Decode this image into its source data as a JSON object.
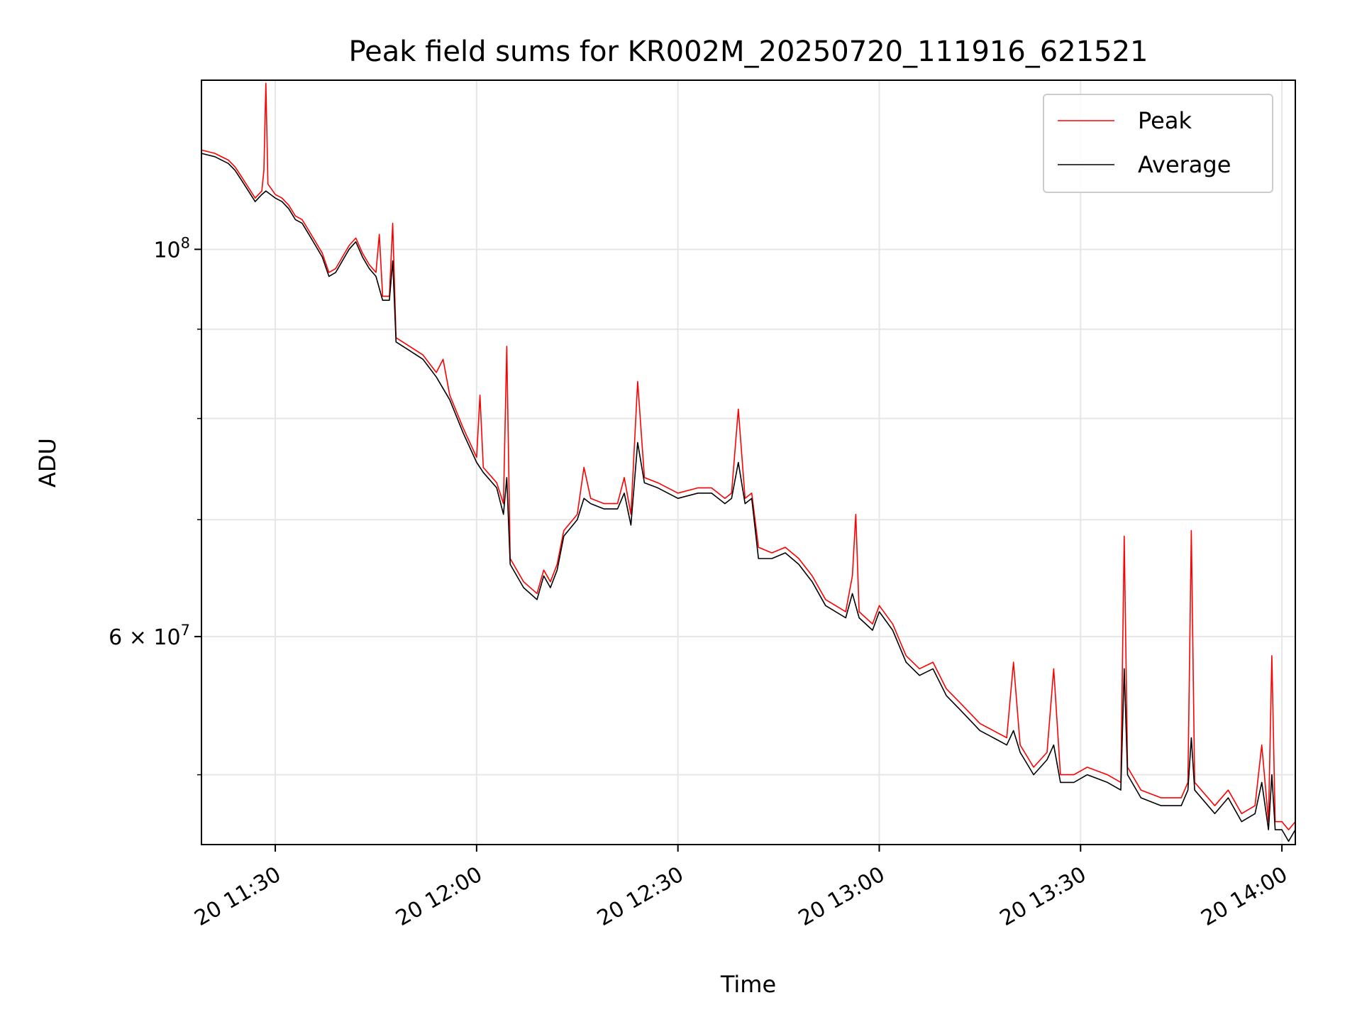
{
  "chart_data": {
    "type": "line",
    "title": "Peak field sums for KR002M_20250720_111916_621521",
    "xlabel": "Time",
    "ylabel": "ADU",
    "yscale": "log",
    "xlim": [
      "2025-07-20 11:19",
      "2025-07-20 14:02"
    ],
    "ylim": [
      45600000,
      125000000
    ],
    "grid": true,
    "legend_position": "top-right",
    "x_ticks": [
      {
        "value": "2025-07-20 11:30",
        "label": "20 11:30"
      },
      {
        "value": "2025-07-20 12:00",
        "label": "20 12:00"
      },
      {
        "value": "2025-07-20 12:30",
        "label": "20 12:30"
      },
      {
        "value": "2025-07-20 13:00",
        "label": "20 13:00"
      },
      {
        "value": "2025-07-20 13:30",
        "label": "20 13:30"
      },
      {
        "value": "2025-07-20 14:00",
        "label": "20 14:00"
      }
    ],
    "y_major_ticks": [
      {
        "value": 100000000,
        "base": "10",
        "exp": "8"
      },
      {
        "value": 60000000,
        "base": "6 × 10",
        "exp": "7"
      }
    ],
    "y_minor_ticks": [
      50000000,
      70000000,
      80000000,
      90000000
    ],
    "series": [
      {
        "name": "Peak",
        "color": "#ff0000",
        "points": [
          [
            "2025-07-20 11:19",
            114.0
          ],
          [
            "2025-07-20 11:21",
            113.5
          ],
          [
            "2025-07-20 11:23",
            112.5
          ],
          [
            "2025-07-20 11:24",
            111.5
          ],
          [
            "2025-07-20 11:25",
            110.0
          ],
          [
            "2025-07-20 11:26",
            108.5
          ],
          [
            "2025-07-20 11:27",
            107.0
          ],
          [
            "2025-07-20 11:28",
            108.0
          ],
          [
            "2025-07-20 11:28.3",
            111.0
          ],
          [
            "2025-07-20 11:28.6",
            124.5
          ],
          [
            "2025-07-20 11:28.9",
            109.0
          ],
          [
            "2025-07-20 11:30",
            107.5
          ],
          [
            "2025-07-20 11:31",
            107.0
          ],
          [
            "2025-07-20 11:32",
            106.0
          ],
          [
            "2025-07-20 11:33",
            104.5
          ],
          [
            "2025-07-20 11:34",
            104.0
          ],
          [
            "2025-07-20 11:35",
            102.5
          ],
          [
            "2025-07-20 11:36",
            101.0
          ],
          [
            "2025-07-20 11:37",
            99.5
          ],
          [
            "2025-07-20 11:38",
            97.0
          ],
          [
            "2025-07-20 11:39",
            97.5
          ],
          [
            "2025-07-20 11:40",
            99.0
          ],
          [
            "2025-07-20 11:41",
            100.5
          ],
          [
            "2025-07-20 11:42",
            101.5
          ],
          [
            "2025-07-20 11:43",
            99.5
          ],
          [
            "2025-07-20 11:44",
            98.0
          ],
          [
            "2025-07-20 11:45",
            97.0
          ],
          [
            "2025-07-20 11:45.5",
            102.0
          ],
          [
            "2025-07-20 11:46",
            94.0
          ],
          [
            "2025-07-20 11:47",
            94.0
          ],
          [
            "2025-07-20 11:47.5",
            103.5
          ],
          [
            "2025-07-20 11:48",
            89.0
          ],
          [
            "2025-07-20 11:50",
            88.0
          ],
          [
            "2025-07-20 11:52",
            87.0
          ],
          [
            "2025-07-20 11:54",
            85.0
          ],
          [
            "2025-07-20 11:55",
            86.5
          ],
          [
            "2025-07-20 11:56",
            82.5
          ],
          [
            "2025-07-20 11:58",
            79.0
          ],
          [
            "2025-07-20 12:00",
            76.0
          ],
          [
            "2025-07-20 12:00.5",
            82.5
          ],
          [
            "2025-07-20 12:01",
            75.0
          ],
          [
            "2025-07-20 12:03",
            73.5
          ],
          [
            "2025-07-20 12:04",
            71.5
          ],
          [
            "2025-07-20 12:04.5",
            88.0
          ],
          [
            "2025-07-20 12:05",
            66.5
          ],
          [
            "2025-07-20 12:07",
            64.5
          ],
          [
            "2025-07-20 12:09",
            63.5
          ],
          [
            "2025-07-20 12:10",
            65.5
          ],
          [
            "2025-07-20 12:11",
            64.5
          ],
          [
            "2025-07-20 12:12",
            66.0
          ],
          [
            "2025-07-20 12:13",
            69.0
          ],
          [
            "2025-07-20 12:15",
            70.5
          ],
          [
            "2025-07-20 12:16",
            75.0
          ],
          [
            "2025-07-20 12:17",
            72.0
          ],
          [
            "2025-07-20 12:19",
            71.5
          ],
          [
            "2025-07-20 12:21",
            71.5
          ],
          [
            "2025-07-20 12:22",
            74.0
          ],
          [
            "2025-07-20 12:23",
            70.5
          ],
          [
            "2025-07-20 12:24",
            84.0
          ],
          [
            "2025-07-20 12:25",
            74.0
          ],
          [
            "2025-07-20 12:27",
            73.5
          ],
          [
            "2025-07-20 12:30",
            72.5
          ],
          [
            "2025-07-20 12:33",
            73.0
          ],
          [
            "2025-07-20 12:35",
            73.0
          ],
          [
            "2025-07-20 12:37",
            72.0
          ],
          [
            "2025-07-20 12:38",
            72.5
          ],
          [
            "2025-07-20 12:39",
            81.0
          ],
          [
            "2025-07-20 12:40",
            72.0
          ],
          [
            "2025-07-20 12:41",
            72.5
          ],
          [
            "2025-07-20 12:42",
            67.5
          ],
          [
            "2025-07-20 12:44",
            67.0
          ],
          [
            "2025-07-20 12:46",
            67.5
          ],
          [
            "2025-07-20 12:48",
            66.5
          ],
          [
            "2025-07-20 12:50",
            65.0
          ],
          [
            "2025-07-20 12:52",
            63.0
          ],
          [
            "2025-07-20 12:55",
            62.0
          ],
          [
            "2025-07-20 12:56",
            65.0
          ],
          [
            "2025-07-20 12:56.5",
            70.5
          ],
          [
            "2025-07-20 12:57",
            62.0
          ],
          [
            "2025-07-20 12:59",
            61.0
          ],
          [
            "2025-07-20 13:00",
            62.5
          ],
          [
            "2025-07-20 13:02",
            61.0
          ],
          [
            "2025-07-20 13:04",
            58.5
          ],
          [
            "2025-07-20 13:06",
            57.5
          ],
          [
            "2025-07-20 13:08",
            58.0
          ],
          [
            "2025-07-20 13:10",
            56.0
          ],
          [
            "2025-07-20 13:12",
            55.0
          ],
          [
            "2025-07-20 13:15",
            53.5
          ],
          [
            "2025-07-20 13:17",
            53.0
          ],
          [
            "2025-07-20 13:19",
            52.5
          ],
          [
            "2025-07-20 13:20",
            58.0
          ],
          [
            "2025-07-20 13:21",
            52.0
          ],
          [
            "2025-07-20 13:23",
            50.5
          ],
          [
            "2025-07-20 13:25",
            51.5
          ],
          [
            "2025-07-20 13:26",
            57.5
          ],
          [
            "2025-07-20 13:27",
            50.0
          ],
          [
            "2025-07-20 13:29",
            50.0
          ],
          [
            "2025-07-20 13:31",
            50.5
          ],
          [
            "2025-07-20 13:34",
            50.0
          ],
          [
            "2025-07-20 13:36",
            49.5
          ],
          [
            "2025-07-20 13:36.5",
            68.5
          ],
          [
            "2025-07-20 13:37",
            50.5
          ],
          [
            "2025-07-20 13:39",
            49.0
          ],
          [
            "2025-07-20 13:42",
            48.5
          ],
          [
            "2025-07-20 13:45",
            48.5
          ],
          [
            "2025-07-20 13:46",
            49.5
          ],
          [
            "2025-07-20 13:46.5",
            69.0
          ],
          [
            "2025-07-20 13:47",
            49.5
          ],
          [
            "2025-07-20 13:50",
            48.0
          ],
          [
            "2025-07-20 13:52",
            49.0
          ],
          [
            "2025-07-20 13:54",
            47.5
          ],
          [
            "2025-07-20 13:56",
            48.0
          ],
          [
            "2025-07-20 13:57",
            52.0
          ],
          [
            "2025-07-20 13:58",
            47.0
          ],
          [
            "2025-07-20 13:58.5",
            58.5
          ],
          [
            "2025-07-20 13:59",
            47.0
          ],
          [
            "2025-07-20 14:00",
            47.0
          ],
          [
            "2025-07-20 14:01",
            46.5
          ],
          [
            "2025-07-20 14:02",
            47.0
          ]
        ]
      },
      {
        "name": "Average",
        "color": "#000000",
        "points": [
          [
            "2025-07-20 11:19",
            113.5
          ],
          [
            "2025-07-20 11:21",
            113.0
          ],
          [
            "2025-07-20 11:23",
            112.0
          ],
          [
            "2025-07-20 11:24",
            111.0
          ],
          [
            "2025-07-20 11:25",
            109.5
          ],
          [
            "2025-07-20 11:26",
            108.0
          ],
          [
            "2025-07-20 11:27",
            106.5
          ],
          [
            "2025-07-20 11:28",
            107.5
          ],
          [
            "2025-07-20 11:28.6",
            108.0
          ],
          [
            "2025-07-20 11:30",
            107.0
          ],
          [
            "2025-07-20 11:31",
            106.5
          ],
          [
            "2025-07-20 11:32",
            105.5
          ],
          [
            "2025-07-20 11:33",
            104.0
          ],
          [
            "2025-07-20 11:34",
            103.5
          ],
          [
            "2025-07-20 11:35",
            102.0
          ],
          [
            "2025-07-20 11:36",
            100.5
          ],
          [
            "2025-07-20 11:37",
            99.0
          ],
          [
            "2025-07-20 11:38",
            96.5
          ],
          [
            "2025-07-20 11:39",
            97.0
          ],
          [
            "2025-07-20 11:40",
            98.5
          ],
          [
            "2025-07-20 11:41",
            100.0
          ],
          [
            "2025-07-20 11:42",
            101.0
          ],
          [
            "2025-07-20 11:43",
            99.0
          ],
          [
            "2025-07-20 11:44",
            97.5
          ],
          [
            "2025-07-20 11:45",
            96.5
          ],
          [
            "2025-07-20 11:46",
            93.5
          ],
          [
            "2025-07-20 11:47",
            93.5
          ],
          [
            "2025-07-20 11:47.5",
            98.5
          ],
          [
            "2025-07-20 11:48",
            88.5
          ],
          [
            "2025-07-20 11:50",
            87.5
          ],
          [
            "2025-07-20 11:52",
            86.5
          ],
          [
            "2025-07-20 11:54",
            84.5
          ],
          [
            "2025-07-20 11:56",
            82.0
          ],
          [
            "2025-07-20 11:58",
            78.5
          ],
          [
            "2025-07-20 12:00",
            75.5
          ],
          [
            "2025-07-20 12:01",
            74.5
          ],
          [
            "2025-07-20 12:03",
            73.0
          ],
          [
            "2025-07-20 12:04",
            70.5
          ],
          [
            "2025-07-20 12:04.5",
            74.0
          ],
          [
            "2025-07-20 12:05",
            66.0
          ],
          [
            "2025-07-20 12:07",
            64.0
          ],
          [
            "2025-07-20 12:09",
            63.0
          ],
          [
            "2025-07-20 12:10",
            65.0
          ],
          [
            "2025-07-20 12:11",
            64.0
          ],
          [
            "2025-07-20 12:12",
            65.5
          ],
          [
            "2025-07-20 12:13",
            68.5
          ],
          [
            "2025-07-20 12:15",
            70.0
          ],
          [
            "2025-07-20 12:16",
            72.0
          ],
          [
            "2025-07-20 12:17",
            71.5
          ],
          [
            "2025-07-20 12:19",
            71.0
          ],
          [
            "2025-07-20 12:21",
            71.0
          ],
          [
            "2025-07-20 12:22",
            72.5
          ],
          [
            "2025-07-20 12:23",
            69.5
          ],
          [
            "2025-07-20 12:24",
            77.5
          ],
          [
            "2025-07-20 12:25",
            73.5
          ],
          [
            "2025-07-20 12:27",
            73.0
          ],
          [
            "2025-07-20 12:30",
            72.0
          ],
          [
            "2025-07-20 12:33",
            72.5
          ],
          [
            "2025-07-20 12:35",
            72.5
          ],
          [
            "2025-07-20 12:37",
            71.5
          ],
          [
            "2025-07-20 12:38",
            72.0
          ],
          [
            "2025-07-20 12:39",
            75.5
          ],
          [
            "2025-07-20 12:40",
            71.5
          ],
          [
            "2025-07-20 12:41",
            72.0
          ],
          [
            "2025-07-20 12:42",
            66.5
          ],
          [
            "2025-07-20 12:44",
            66.5
          ],
          [
            "2025-07-20 12:46",
            67.0
          ],
          [
            "2025-07-20 12:48",
            66.0
          ],
          [
            "2025-07-20 12:50",
            64.5
          ],
          [
            "2025-07-20 12:52",
            62.5
          ],
          [
            "2025-07-20 12:55",
            61.5
          ],
          [
            "2025-07-20 12:56",
            63.5
          ],
          [
            "2025-07-20 12:57",
            61.5
          ],
          [
            "2025-07-20 12:59",
            60.5
          ],
          [
            "2025-07-20 13:00",
            62.0
          ],
          [
            "2025-07-20 13:02",
            60.5
          ],
          [
            "2025-07-20 13:04",
            58.0
          ],
          [
            "2025-07-20 13:06",
            57.0
          ],
          [
            "2025-07-20 13:08",
            57.5
          ],
          [
            "2025-07-20 13:10",
            55.5
          ],
          [
            "2025-07-20 13:12",
            54.5
          ],
          [
            "2025-07-20 13:15",
            53.0
          ],
          [
            "2025-07-20 13:17",
            52.5
          ],
          [
            "2025-07-20 13:19",
            52.0
          ],
          [
            "2025-07-20 13:20",
            53.0
          ],
          [
            "2025-07-20 13:21",
            51.5
          ],
          [
            "2025-07-20 13:23",
            50.0
          ],
          [
            "2025-07-20 13:25",
            51.0
          ],
          [
            "2025-07-20 13:26",
            52.0
          ],
          [
            "2025-07-20 13:27",
            49.5
          ],
          [
            "2025-07-20 13:29",
            49.5
          ],
          [
            "2025-07-20 13:31",
            50.0
          ],
          [
            "2025-07-20 13:34",
            49.5
          ],
          [
            "2025-07-20 13:36",
            49.0
          ],
          [
            "2025-07-20 13:36.5",
            57.5
          ],
          [
            "2025-07-20 13:37",
            50.0
          ],
          [
            "2025-07-20 13:39",
            48.5
          ],
          [
            "2025-07-20 13:42",
            48.0
          ],
          [
            "2025-07-20 13:45",
            48.0
          ],
          [
            "2025-07-20 13:46",
            49.0
          ],
          [
            "2025-07-20 13:46.5",
            52.5
          ],
          [
            "2025-07-20 13:47",
            49.0
          ],
          [
            "2025-07-20 13:50",
            47.5
          ],
          [
            "2025-07-20 13:52",
            48.5
          ],
          [
            "2025-07-20 13:54",
            47.0
          ],
          [
            "2025-07-20 13:56",
            47.5
          ],
          [
            "2025-07-20 13:57",
            49.5
          ],
          [
            "2025-07-20 13:58",
            46.5
          ],
          [
            "2025-07-20 13:58.5",
            50.0
          ],
          [
            "2025-07-20 13:59",
            46.5
          ],
          [
            "2025-07-20 14:00",
            46.5
          ],
          [
            "2025-07-20 14:01",
            45.8
          ],
          [
            "2025-07-20 14:02",
            46.5
          ]
        ]
      }
    ]
  }
}
